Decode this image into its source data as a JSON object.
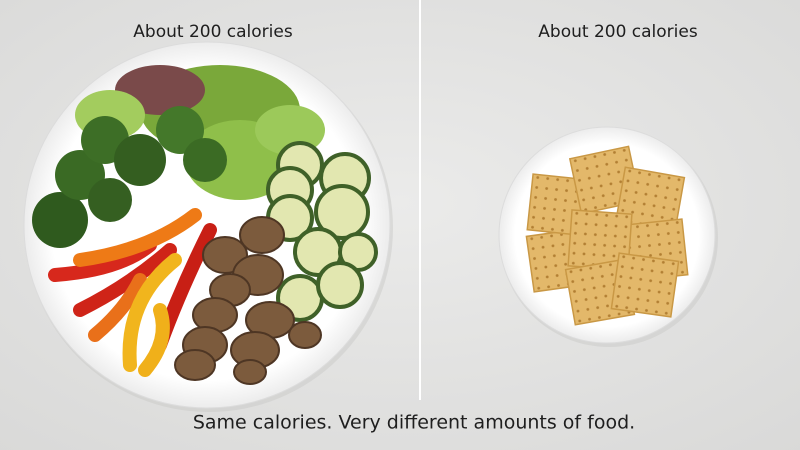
{
  "panels": [
    {
      "label": "About 200 calories"
    },
    {
      "label": "About 200 calories"
    }
  ],
  "caption": "Same calories. Very different amounts of food."
}
